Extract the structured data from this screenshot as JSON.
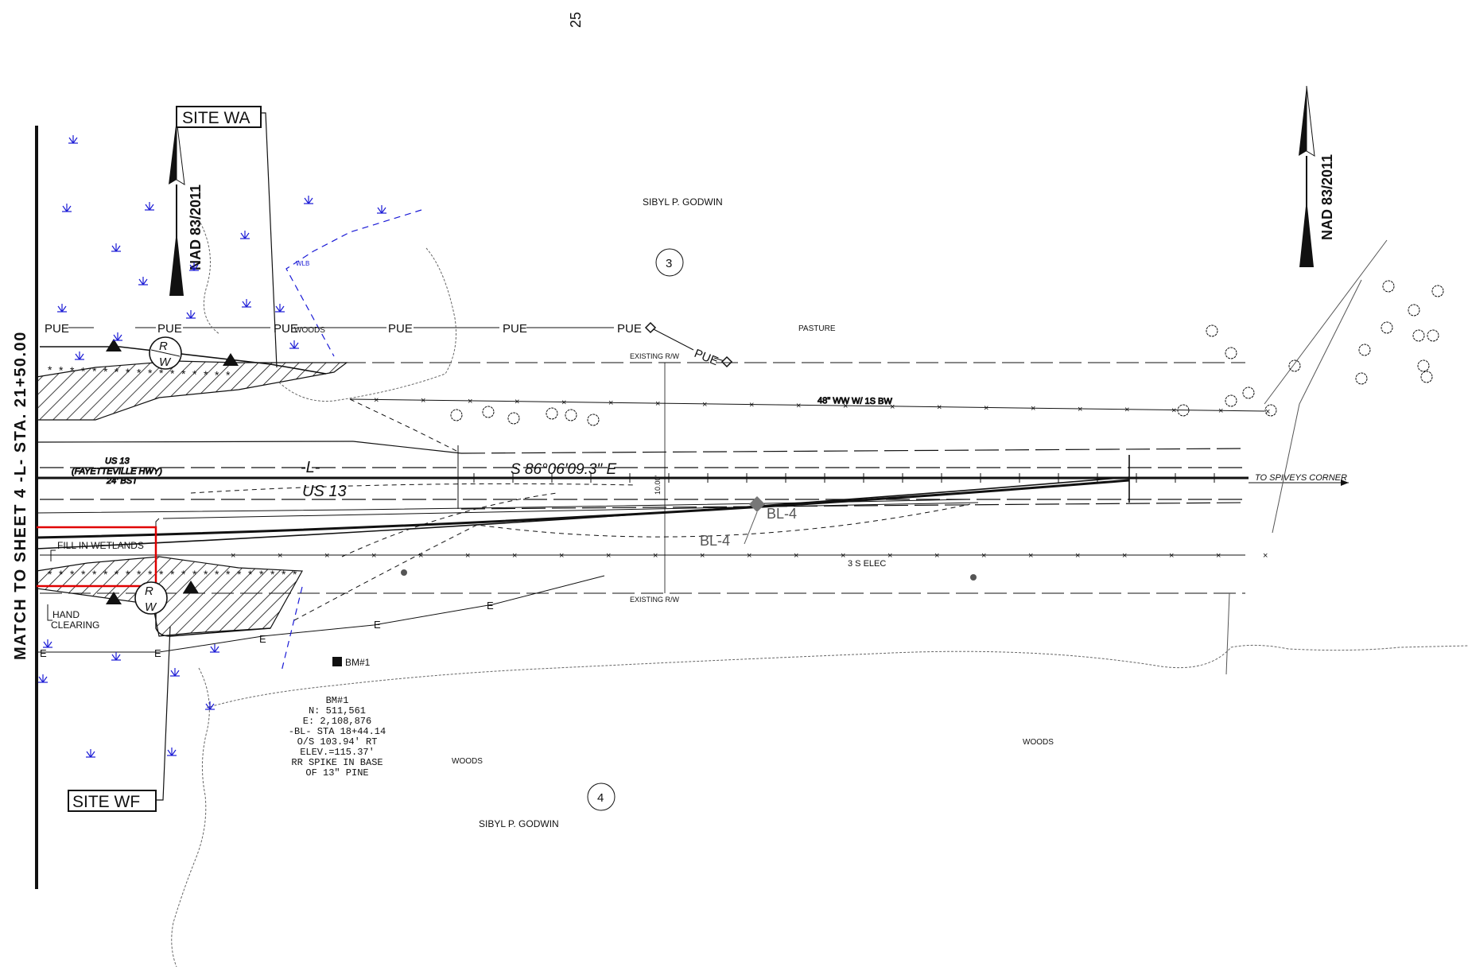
{
  "sheet": {
    "page_number": "25",
    "match_line": "MATCH TO SHEET 4 -L- STA. 21+50.00"
  },
  "north_arrows": [
    {
      "label": "NAD 83/2011"
    },
    {
      "label": "NAD 83/2011"
    }
  ],
  "sites": {
    "site_wa": "SITE WA",
    "site_wf": "SITE WF"
  },
  "utilities": {
    "pue": "PUE",
    "existing_rw": "EXISTING R/W",
    "fence_label": "48\" WW W/ 1S BW",
    "elec_label": "3 S ELEC",
    "rw_marker_top": "R",
    "rw_marker_bottom": "W"
  },
  "alignment": {
    "name": "-L-",
    "route": "US 13",
    "bearing": "S 86°06'09.3\" E",
    "offset_label": "10.00'",
    "existing_road": "US 13",
    "existing_road_name": "(FAYETTEVILLE HWY)",
    "existing_road_width": "24' BST",
    "destination": "TO SPIVEYS CORNER",
    "baseline_1": "BL-4",
    "baseline_2": "BL-4"
  },
  "owners": {
    "parcel_3_owner": "SIBYL P. GODWIN",
    "parcel_3_number": "3",
    "parcel_4_owner": "SIBYL P. GODWIN",
    "parcel_4_number": "4"
  },
  "land_cover": {
    "pasture": "PASTURE",
    "woods_1": "WOODS",
    "woods_2": "WOODS",
    "woods_3": "WOODS"
  },
  "wetland_notes": {
    "fill": "FILL IN WETLANDS",
    "hand_clearing_1": "HAND",
    "hand_clearing_2": "CLEARING",
    "wlb": "WLB"
  },
  "benchmark": {
    "tag": "BM#1",
    "lines": [
      "BM#1",
      "N: 511,561",
      "E: 2,108,876",
      "-BL- STA 18+44.14",
      "O/S 103.94' RT",
      "ELEV.=115.37'",
      "RR SPIKE IN BASE",
      "OF 13\" PINE"
    ]
  },
  "colors": {
    "line": "#111111",
    "wetland_symbol": "#1a1ad6",
    "fill_limit": "#e00000"
  }
}
